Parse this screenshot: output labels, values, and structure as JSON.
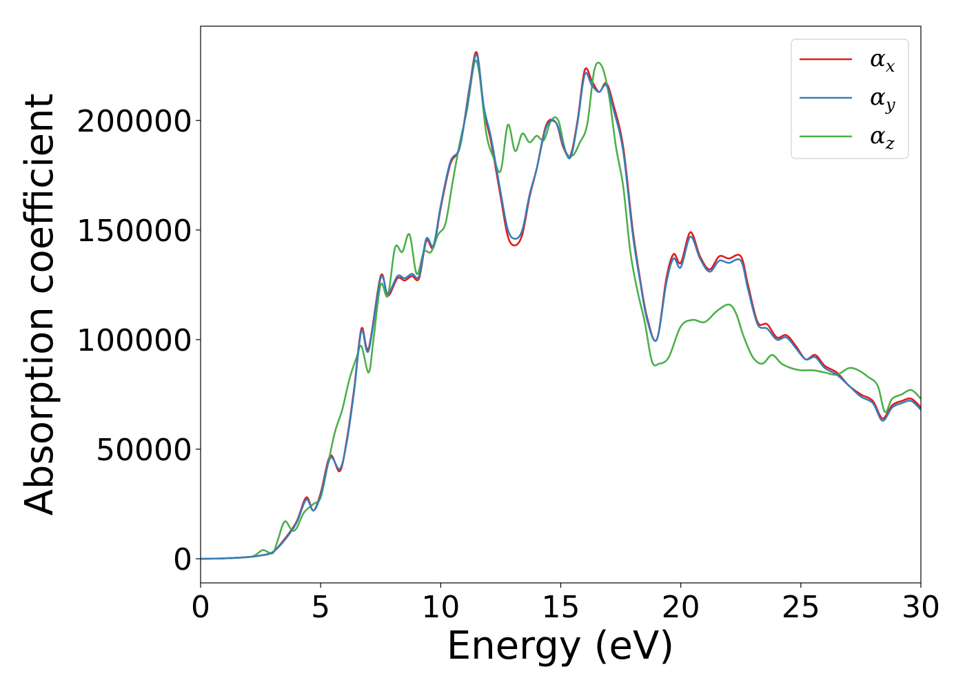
{
  "chart_data": {
    "type": "line",
    "title": "",
    "xlabel": "Energy (eV)",
    "ylabel": "Absorption coefficient",
    "xlim": [
      0,
      30
    ],
    "ylim": [
      -11000,
      243000
    ],
    "xticks": [
      0,
      5,
      10,
      15,
      20,
      25,
      30
    ],
    "yticks": [
      0,
      50000,
      100000,
      150000,
      200000
    ],
    "grid": false,
    "legend_position": "top-right",
    "series": [
      {
        "name": "αx",
        "symbol": "α",
        "subscript": "x",
        "color": "#e41a1c",
        "x": [
          0,
          1,
          2,
          2.5,
          3,
          3.5,
          4,
          4.4,
          4.7,
          5,
          5.4,
          5.8,
          6.1,
          6.4,
          6.7,
          7,
          7.5,
          7.8,
          8.2,
          8.5,
          8.8,
          9.1,
          9.4,
          9.7,
          10,
          10.4,
          10.8,
          11.2,
          11.5,
          11.8,
          12.1,
          12.5,
          12.8,
          13.1,
          13.4,
          13.7,
          14,
          14.4,
          14.8,
          15.1,
          15.4,
          15.7,
          16,
          16.3,
          16.6,
          16.9,
          17.2,
          17.6,
          18,
          18.3,
          18.6,
          19,
          19.4,
          19.7,
          20,
          20.4,
          20.8,
          21.2,
          21.6,
          22,
          22.5,
          22.8,
          23.2,
          23.6,
          24,
          24.4,
          24.8,
          25.2,
          25.6,
          26,
          26.5,
          27,
          27.5,
          28,
          28.4,
          28.8,
          29.2,
          29.6,
          30
        ],
        "y": [
          0,
          200,
          800,
          1500,
          3000,
          9000,
          17000,
          28000,
          22000,
          30000,
          47000,
          40000,
          55000,
          78000,
          105000,
          96000,
          129000,
          120000,
          128000,
          127000,
          129000,
          128000,
          145000,
          142000,
          160000,
          180000,
          188000,
          215000,
          231000,
          205000,
          190000,
          165000,
          147000,
          143000,
          148000,
          165000,
          178000,
          198000,
          199000,
          188000,
          184000,
          200000,
          223000,
          218000,
          213000,
          217000,
          207000,
          188000,
          150000,
          128000,
          110000,
          100000,
          128000,
          139000,
          135000,
          149000,
          138000,
          132000,
          138000,
          137000,
          138000,
          125000,
          108000,
          107000,
          101000,
          102000,
          97000,
          91000,
          93000,
          88000,
          85000,
          79000,
          75000,
          72000,
          64000,
          70000,
          72000,
          73000,
          69000
        ]
      },
      {
        "name": "αy",
        "symbol": "α",
        "subscript": "y",
        "color": "#377eb8",
        "x": [
          0,
          1,
          2,
          2.5,
          3,
          3.5,
          4,
          4.4,
          4.7,
          5,
          5.4,
          5.8,
          6.1,
          6.4,
          6.7,
          7,
          7.5,
          7.8,
          8.2,
          8.5,
          8.8,
          9.1,
          9.4,
          9.7,
          10,
          10.4,
          10.8,
          11.2,
          11.5,
          11.8,
          12.1,
          12.5,
          12.8,
          13.1,
          13.4,
          13.7,
          14,
          14.4,
          14.8,
          15.1,
          15.4,
          15.7,
          16,
          16.3,
          16.6,
          16.9,
          17.2,
          17.6,
          18,
          18.3,
          18.6,
          19,
          19.4,
          19.7,
          20,
          20.4,
          20.8,
          21.2,
          21.6,
          22,
          22.5,
          22.8,
          23.2,
          23.6,
          24,
          24.4,
          24.8,
          25.2,
          25.6,
          26,
          26.5,
          27,
          27.5,
          28,
          28.4,
          28.8,
          29.2,
          29.6,
          30
        ],
        "y": [
          0,
          200,
          800,
          1500,
          3000,
          8500,
          16500,
          27000,
          22000,
          29000,
          46000,
          41000,
          54000,
          77000,
          104000,
          95000,
          128000,
          121000,
          129000,
          128000,
          130000,
          129000,
          146000,
          143000,
          161000,
          181000,
          188000,
          214000,
          230000,
          206000,
          192000,
          167000,
          150000,
          146000,
          150000,
          166000,
          178000,
          197000,
          199000,
          189000,
          183000,
          199000,
          221000,
          216000,
          213000,
          216000,
          205000,
          186000,
          148000,
          127000,
          109000,
          100000,
          126000,
          137000,
          133000,
          147000,
          137000,
          131000,
          136000,
          135000,
          136000,
          123000,
          107000,
          105000,
          100000,
          101000,
          96000,
          91000,
          92000,
          87000,
          84000,
          79000,
          74000,
          71000,
          63000,
          69000,
          71000,
          72000,
          68000
        ]
      },
      {
        "name": "αz",
        "symbol": "α",
        "subscript": "z",
        "color": "#4daf4a",
        "x": [
          0,
          1,
          2,
          2.3,
          2.6,
          3,
          3.2,
          3.5,
          3.8,
          4,
          4.3,
          4.7,
          5,
          5.3,
          5.6,
          5.9,
          6.2,
          6.5,
          6.7,
          7,
          7.2,
          7.5,
          7.8,
          8.1,
          8.4,
          8.7,
          9,
          9.3,
          9.6,
          9.9,
          10.2,
          10.5,
          10.8,
          11.1,
          11.4,
          11.6,
          11.9,
          12.2,
          12.5,
          12.8,
          13.1,
          13.4,
          13.7,
          14,
          14.3,
          14.6,
          14.9,
          15.2,
          15.5,
          15.8,
          16.1,
          16.4,
          16.7,
          17,
          17.3,
          17.6,
          17.9,
          18.2,
          18.5,
          18.8,
          19.1,
          19.5,
          20,
          20.5,
          21,
          21.5,
          22,
          22.3,
          22.6,
          23,
          23.4,
          23.8,
          24.2,
          24.6,
          25,
          25.5,
          26,
          26.5,
          27,
          27.4,
          27.8,
          28.2,
          28.5,
          28.8,
          29.2,
          29.6,
          30
        ],
        "y": [
          0,
          200,
          800,
          1800,
          4000,
          2500,
          8000,
          17000,
          13000,
          14000,
          21000,
          25000,
          28000,
          43000,
          58000,
          68000,
          82000,
          92000,
          97000,
          85000,
          100000,
          125000,
          120000,
          142000,
          140000,
          148000,
          130000,
          140000,
          140000,
          148000,
          153000,
          172000,
          190000,
          205000,
          226000,
          222000,
          194000,
          183000,
          177000,
          198000,
          186000,
          194000,
          190000,
          193000,
          191000,
          200000,
          200000,
          186000,
          184000,
          190000,
          198000,
          223000,
          225000,
          212000,
          188000,
          170000,
          140000,
          122000,
          108000,
          90000,
          89000,
          92000,
          106000,
          109000,
          108000,
          113000,
          116000,
          112000,
          102000,
          92000,
          89000,
          93000,
          89000,
          87000,
          86000,
          86000,
          85000,
          84000,
          87000,
          86000,
          83000,
          79000,
          67000,
          73000,
          75000,
          77000,
          73000
        ]
      }
    ]
  }
}
